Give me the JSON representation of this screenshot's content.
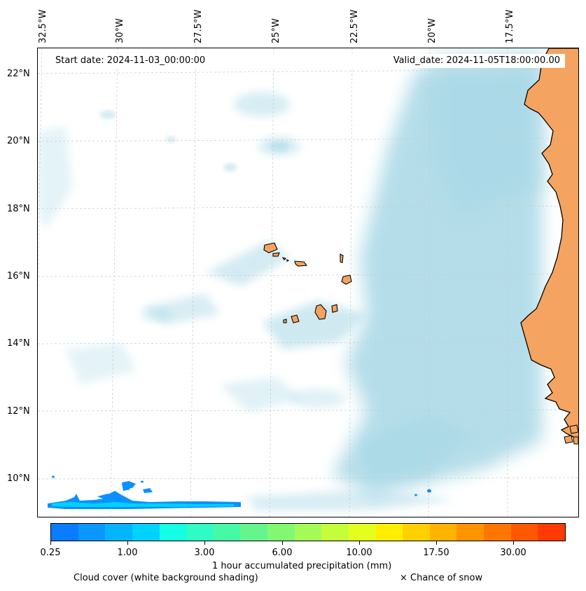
{
  "header": {
    "start_date": "Start date: 2024-11-03_00:00:00",
    "valid_date": "Valid_date: 2024-11-05T18:00:00.00"
  },
  "longitude_labels": [
    "32.5°W",
    "30°W",
    "27.5°W",
    "25°W",
    "22.5°W",
    "20°W",
    "17.5°W"
  ],
  "latitude_labels": [
    "22°N",
    "20°N",
    "18°N",
    "16°N",
    "14°N",
    "12°N",
    "10°N"
  ],
  "colorbar": {
    "label": "1 hour accumulated precipitation (mm)",
    "tick_labels": [
      "0.25",
      "1.00",
      "3.00",
      "6.00",
      "10.00",
      "17.50",
      "30.00"
    ],
    "colors": [
      "#0a7cff",
      "#0a98ff",
      "#05b4ff",
      "#00d2ff",
      "#14ffe4",
      "#2efcc4",
      "#46f9a6",
      "#64f68c",
      "#82f872",
      "#a4fb56",
      "#c4fd3a",
      "#e4ff1e",
      "#ffee00",
      "#ffd000",
      "#ffb200",
      "#ff9400",
      "#ff7600",
      "#ff5800",
      "#ff3a00"
    ]
  },
  "legend": {
    "cloud_cover": "Cloud cover (white background shading)",
    "snow": "× Chance of snow"
  },
  "colors": {
    "land": "#f4a460",
    "cloud": "#a8d8e6",
    "precip_light": "#0a90ff"
  }
}
